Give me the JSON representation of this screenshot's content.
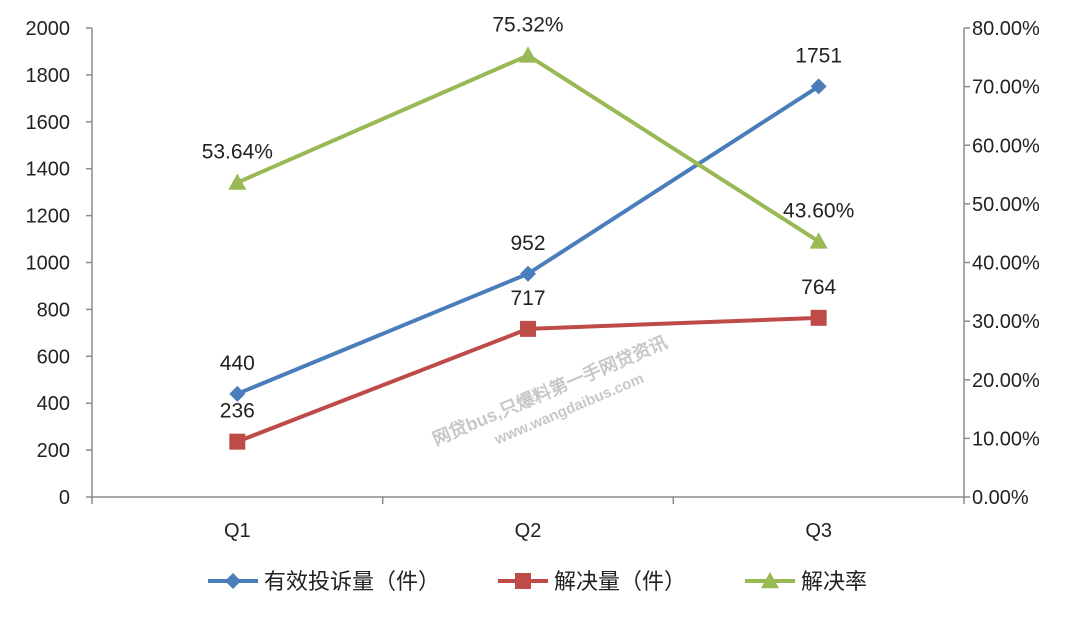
{
  "chart_data": {
    "type": "line",
    "categories": [
      "Q1",
      "Q2",
      "Q3"
    ],
    "y_left": {
      "min": 0,
      "max": 2000,
      "step": 200,
      "ticks": [
        "0",
        "200",
        "400",
        "600",
        "800",
        "1000",
        "1200",
        "1400",
        "1600",
        "1800",
        "2000"
      ]
    },
    "y_right": {
      "min": 0,
      "max": 0.8,
      "step": 0.1,
      "ticks": [
        "0.00%",
        "10.00%",
        "20.00%",
        "30.00%",
        "40.00%",
        "50.00%",
        "60.00%",
        "70.00%",
        "80.00%"
      ]
    },
    "grid": false,
    "legend_position": "bottom",
    "series": [
      {
        "name": "有效投诉量（件）",
        "axis": "left",
        "marker": "diamond",
        "color": "#4A7EBB",
        "values": [
          440,
          952,
          1751
        ],
        "labels": [
          "440",
          "952",
          "1751"
        ]
      },
      {
        "name": "解决量（件）",
        "axis": "left",
        "marker": "square",
        "color": "#BE4B48",
        "values": [
          236,
          717,
          764
        ],
        "labels": [
          "236",
          "717",
          "764"
        ]
      },
      {
        "name": "解决率",
        "axis": "right",
        "marker": "triangle",
        "color": "#98B954",
        "values": [
          0.5364,
          0.7532,
          0.436
        ],
        "labels": [
          "53.64%",
          "75.32%",
          "43.60%"
        ]
      }
    ]
  },
  "watermark": {
    "line1": "网贷bus,只爆料第一手网贷资讯",
    "line2": "www.wangdaibus.com"
  }
}
